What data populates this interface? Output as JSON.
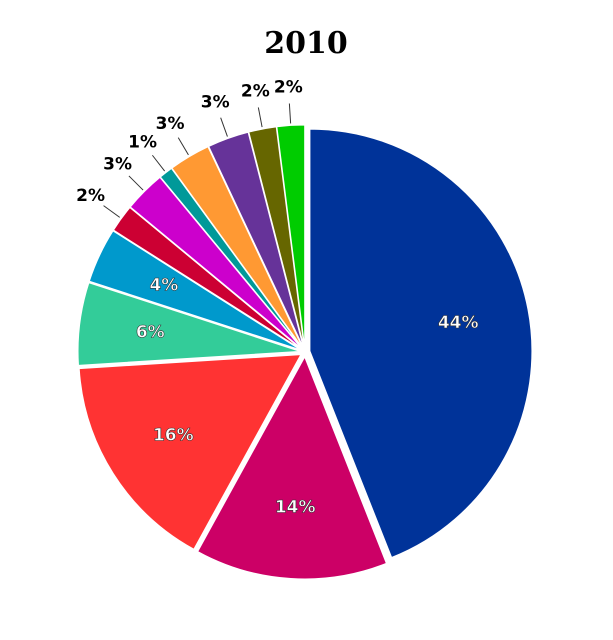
{
  "chart_data": {
    "type": "pie",
    "title": "2010",
    "values": [
      44,
      14,
      16,
      6,
      4,
      2,
      3,
      1,
      3,
      3,
      2,
      2
    ],
    "value_labels": [
      "44%",
      "14%",
      "16%",
      "6%",
      "4%",
      "2%",
      "3%",
      "1%",
      "3%",
      "3%",
      "2%",
      "2%"
    ],
    "colors": [
      "#003399",
      "#cc0066",
      "#ff3333",
      "#33cc99",
      "#0099cc",
      "#cc0033",
      "#cc00cc",
      "#009999",
      "#ff9933",
      "#663399",
      "#666600",
      "#00cc00"
    ]
  }
}
